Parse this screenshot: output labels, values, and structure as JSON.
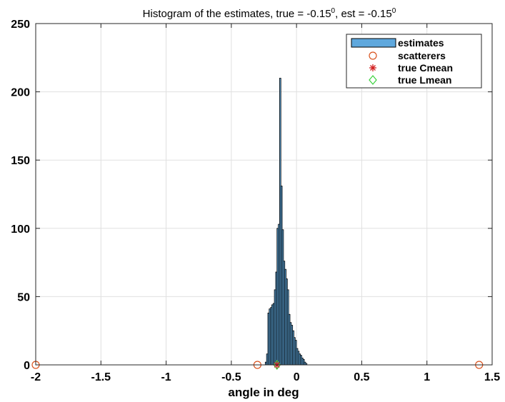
{
  "chart_data": {
    "type": "bar",
    "title": "Histogram of the estimates, true = -0.15",
    "title_sup1": "0",
    "title_mid": ", est = -0.15",
    "title_sup2": "0",
    "xlabel": "angle in deg",
    "ylabel": "",
    "xlim": [
      -2,
      1.5
    ],
    "ylim": [
      0,
      250
    ],
    "grid": true,
    "legend_position": "top-right",
    "x_ticks": [
      -2,
      -1.5,
      -1,
      -0.5,
      0,
      0.5,
      1,
      1.5
    ],
    "x_tick_labels": [
      "-2",
      "-1.5",
      "-1",
      "-0.5",
      "0",
      "0.5",
      "1",
      "1.5"
    ],
    "y_ticks": [
      0,
      50,
      100,
      150,
      200,
      250
    ],
    "y_tick_labels": [
      "0",
      "50",
      "100",
      "150",
      "200",
      "250"
    ],
    "bin_width": 0.01,
    "bin_centers": [
      -0.235,
      -0.225,
      -0.215,
      -0.205,
      -0.195,
      -0.185,
      -0.175,
      -0.165,
      -0.155,
      -0.145,
      -0.135,
      -0.125,
      -0.115,
      -0.105,
      -0.095,
      -0.085,
      -0.075,
      -0.065,
      -0.055,
      -0.045,
      -0.035,
      -0.025,
      -0.015,
      -0.005,
      0.005,
      0.015,
      0.025,
      0.035,
      0.045,
      0.055,
      0.065,
      0.075
    ],
    "series": [
      {
        "name": "estimates",
        "color": "#5fa8dd",
        "values": [
          2,
          8,
          38,
          41,
          42,
          44,
          45,
          55,
          68,
          100,
          103,
          210,
          131,
          99,
          76,
          70,
          63,
          55,
          37,
          31,
          29,
          25,
          20,
          18,
          12,
          10,
          8,
          7,
          5,
          4,
          2,
          1
        ]
      },
      {
        "name": "scatterers",
        "color": "#d9531e",
        "x": [
          -2,
          -0.3,
          1.4
        ],
        "y": [
          0,
          0,
          0
        ]
      },
      {
        "name": "true Cmean",
        "color": "#d21f1f",
        "x": [
          -0.15
        ],
        "y": [
          0
        ]
      },
      {
        "name": "true Lmean",
        "color": "#39d13c",
        "x": [
          -0.15
        ],
        "y": [
          0
        ]
      }
    ]
  }
}
